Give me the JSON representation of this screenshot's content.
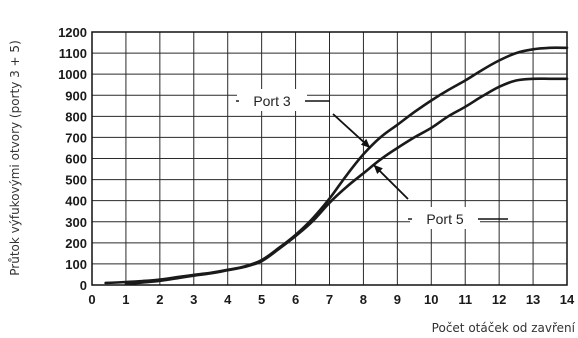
{
  "chart_data": {
    "type": "line",
    "xlabel": "Počet otáček od zavření",
    "ylabel": "Průtok výfukovými otvory (porty 3 + 5)",
    "xlim": [
      0,
      14
    ],
    "ylim": [
      0,
      1200
    ],
    "x_ticks": [
      0,
      1,
      2,
      3,
      4,
      5,
      6,
      7,
      8,
      9,
      10,
      11,
      12,
      13,
      14
    ],
    "y_ticks": [
      0,
      100,
      200,
      300,
      400,
      500,
      600,
      700,
      800,
      900,
      1000,
      1100,
      1200
    ],
    "grid": true,
    "series": [
      {
        "name": "Port 3",
        "x": [
          0.4,
          1,
          1.5,
          2,
          2.5,
          3,
          3.5,
          4,
          4.5,
          5,
          5.5,
          6,
          6.5,
          7,
          7.5,
          8,
          8.5,
          9,
          9.5,
          10,
          10.5,
          11,
          11.5,
          12,
          12.5,
          13,
          13.5,
          14
        ],
        "y": [
          10,
          14,
          19,
          26,
          37,
          48,
          58,
          72,
          88,
          118,
          175,
          238,
          315,
          410,
          520,
          620,
          700,
          760,
          820,
          875,
          925,
          970,
          1020,
          1065,
          1100,
          1118,
          1125,
          1125
        ]
      },
      {
        "name": "Port 5",
        "x": [
          1,
          1.5,
          2,
          2.5,
          3,
          3.5,
          4,
          4.5,
          5,
          5.5,
          6,
          6.5,
          7,
          7.5,
          8,
          8.5,
          9,
          9.5,
          10,
          10.5,
          11,
          11.5,
          12,
          12.5,
          13,
          13.5,
          14
        ],
        "y": [
          5,
          12,
          20,
          32,
          44,
          55,
          70,
          86,
          113,
          170,
          232,
          302,
          390,
          465,
          530,
          595,
          650,
          700,
          745,
          800,
          845,
          895,
          940,
          970,
          978,
          978,
          978
        ]
      }
    ],
    "annotations": [
      {
        "text": "Port 3",
        "series": "Port 3",
        "arrow_to": [
          8.2,
          650
        ]
      },
      {
        "text": "Port 5",
        "series": "Port 5",
        "arrow_to": [
          8.3,
          570
        ]
      }
    ],
    "colors": {
      "line": "#1a1a1a",
      "grid": "#2a2a2a",
      "text": "#1a1a1a"
    }
  }
}
